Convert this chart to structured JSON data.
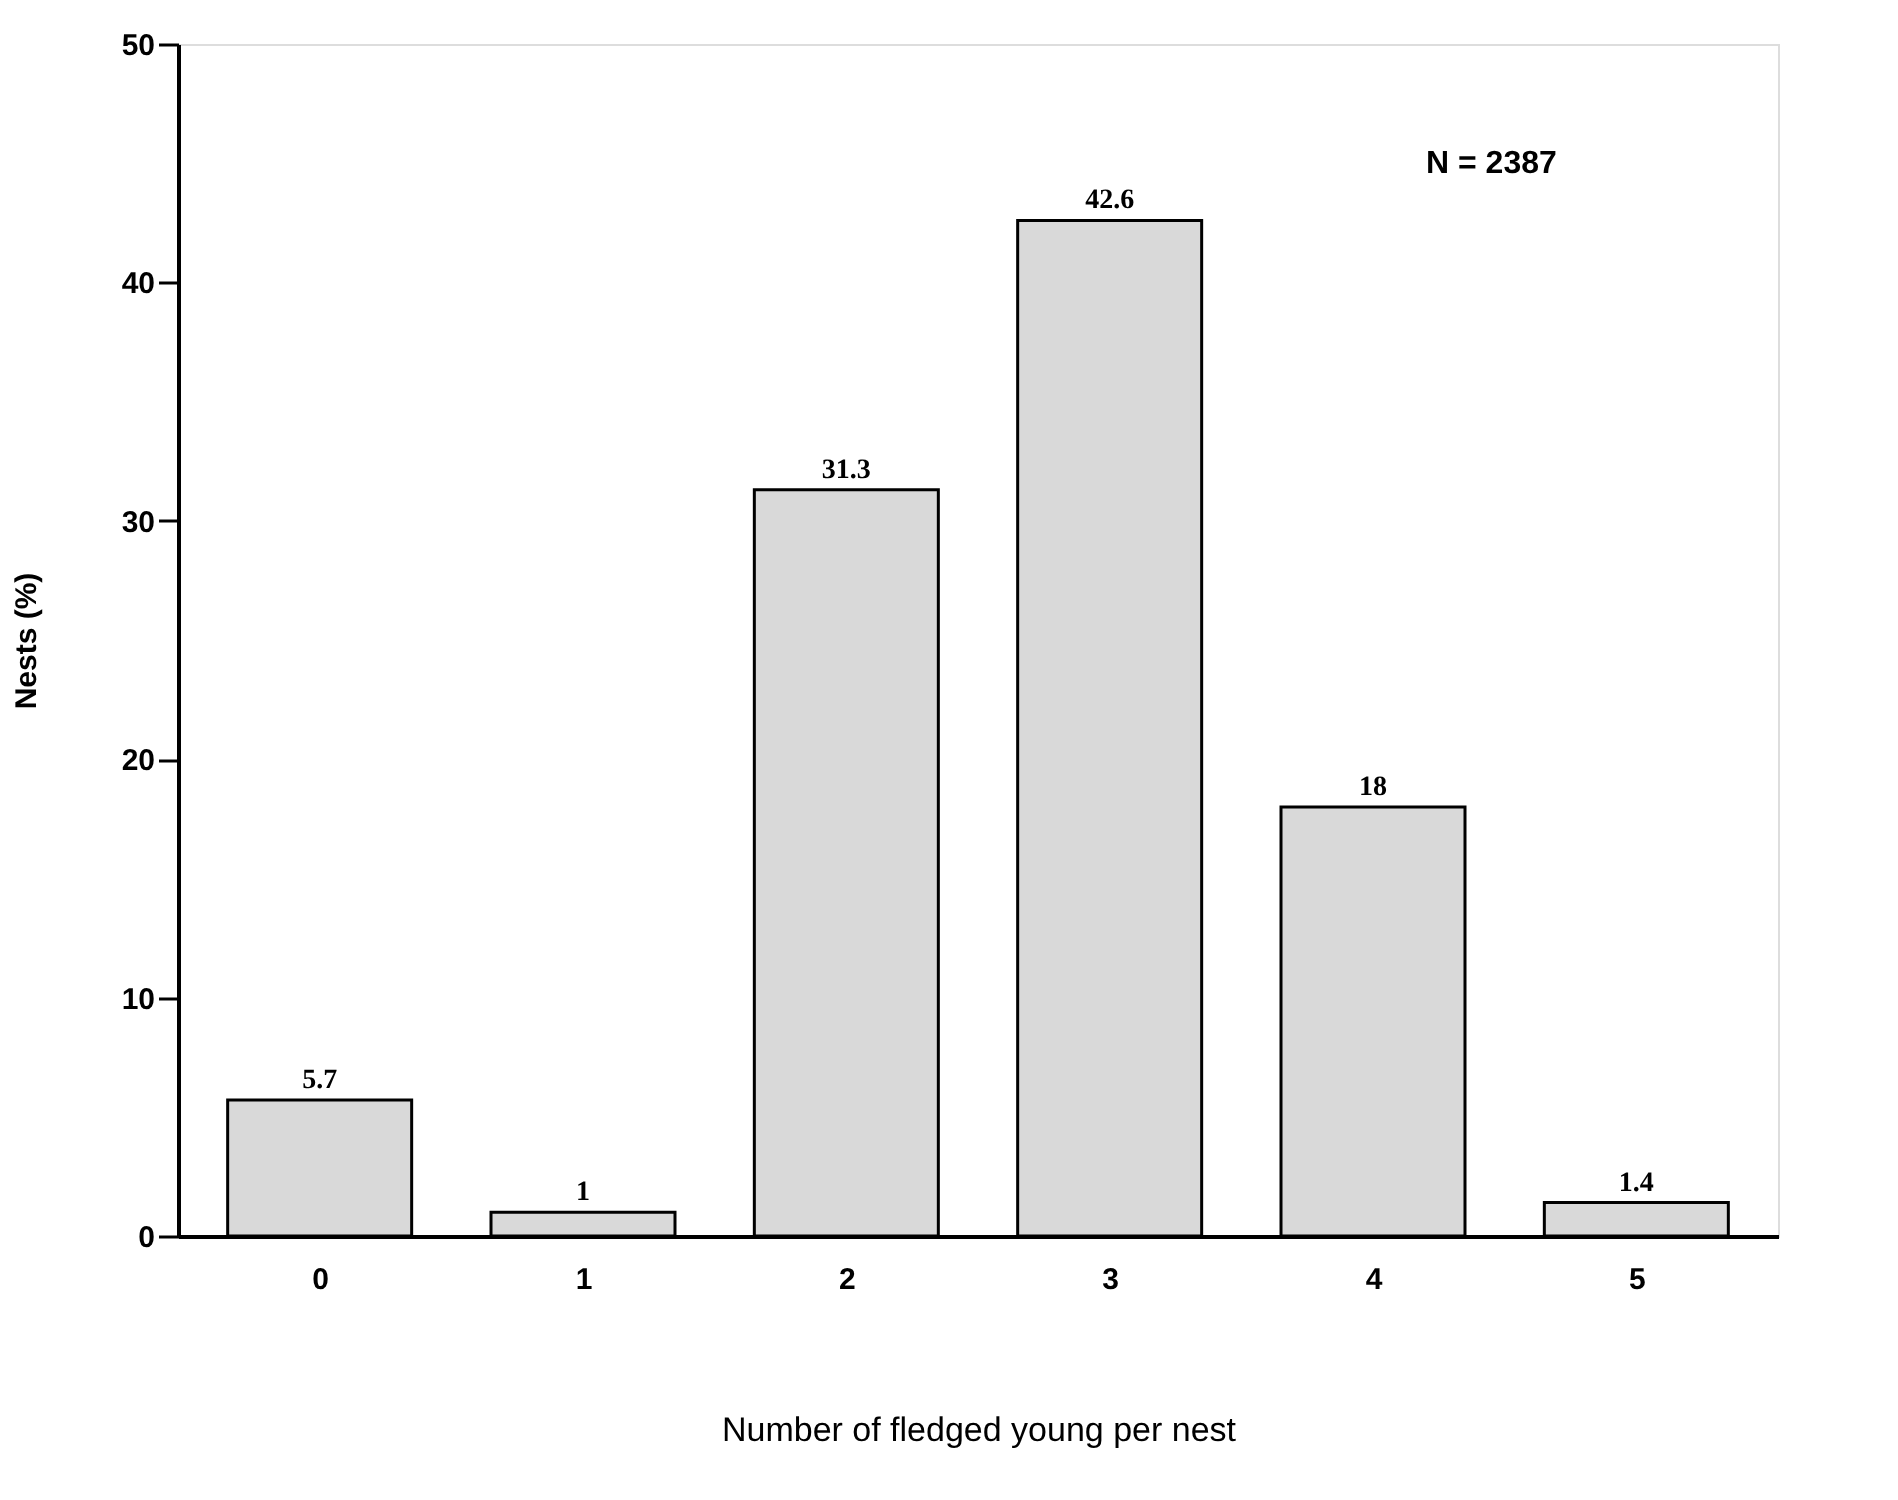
{
  "chart_data": {
    "type": "bar",
    "xlabel": "Number of fledged young per nest",
    "ylabel": "Nests (%)",
    "categories": [
      "0",
      "1",
      "2",
      "3",
      "4",
      "5"
    ],
    "values": [
      5.7,
      1,
      31.3,
      42.6,
      18,
      1.4
    ],
    "color": "#d9d9d9",
    "ylim": [
      0,
      50
    ],
    "yticks": [
      0,
      10,
      20,
      30,
      40,
      50
    ],
    "grid": false,
    "data_labels": true,
    "annotations": [
      "N  =  2387"
    ]
  }
}
